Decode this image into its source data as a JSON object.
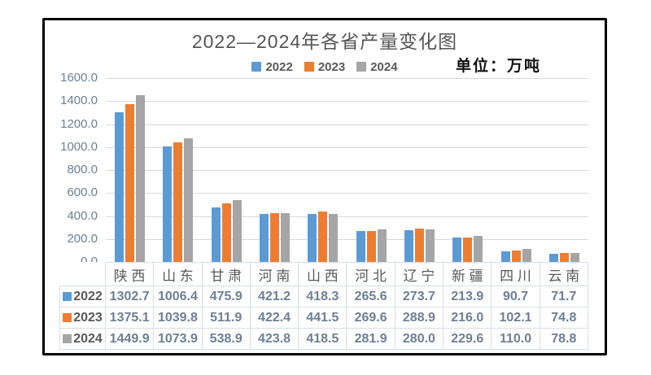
{
  "header": {
    "title": "2022—2024年各省产量变化图",
    "unit_label": "单位：万吨"
  },
  "colors": {
    "series_2022": "#5B9BD5",
    "series_2023": "#ED7D31",
    "series_2024": "#A5A5A5",
    "gridline": "#D9D9D9",
    "axis_text": "#6D7F95",
    "label_text": "#595959",
    "frame_border": "#000000"
  },
  "chart_data": {
    "type": "bar",
    "title": "2022—2024年各省产量变化图",
    "unit_label": "单位：万吨",
    "categories": [
      "陕 西",
      "山 东",
      "甘 肃",
      "河 南",
      "山 西",
      "河 北",
      "辽 宁",
      "新 疆",
      "四 川",
      "云 南"
    ],
    "series": [
      {
        "name": "2022",
        "color": "#5B9BD5",
        "values": [
          1302.7,
          1006.4,
          475.9,
          421.2,
          418.3,
          265.6,
          273.7,
          213.9,
          90.7,
          71.7
        ]
      },
      {
        "name": "2023",
        "color": "#ED7D31",
        "values": [
          1375.1,
          1039.8,
          511.9,
          422.4,
          441.5,
          269.6,
          288.9,
          216.0,
          102.1,
          74.8
        ]
      },
      {
        "name": "2024",
        "color": "#A5A5A5",
        "values": [
          1449.9,
          1073.9,
          538.9,
          423.8,
          418.5,
          281.9,
          280.0,
          229.6,
          110.0,
          78.8
        ]
      }
    ],
    "ylim": [
      0,
      1600
    ],
    "y_ticks": [
      "1600.0",
      "1400.0",
      "1200.0",
      "1000.0",
      "800.0",
      "600.0",
      "400.0",
      "200.0",
      "0.0"
    ],
    "grid": true,
    "legend_position": "top-center",
    "data_table_shown": true
  }
}
